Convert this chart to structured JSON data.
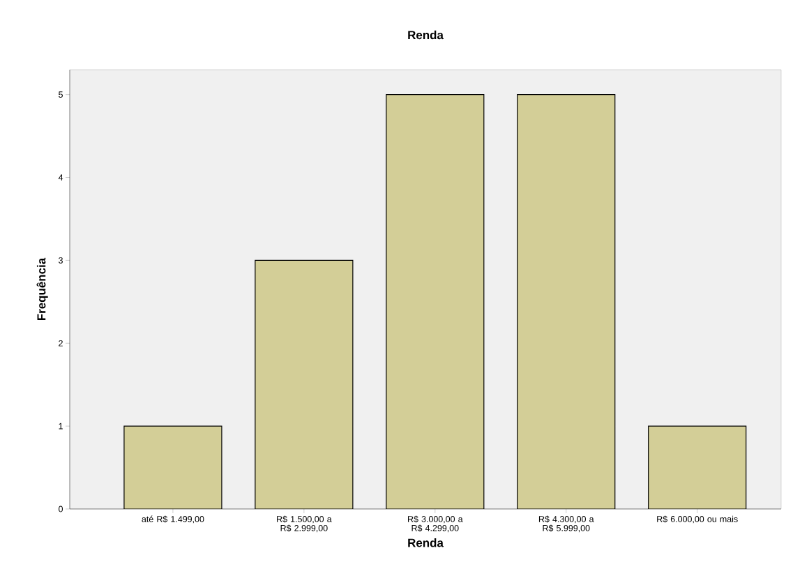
{
  "chart_data": {
    "type": "bar",
    "title": "Renda",
    "xlabel": "Renda",
    "ylabel": "Frequência",
    "categories": [
      "até R$ 1.499,00",
      "R$ 1.500,00 a R$ 2.999,00",
      "R$ 3.000,00 a R$ 4.299,00",
      "R$ 4.300,00 a R$ 5.999,00",
      "R$ 6.000,00 ou mais"
    ],
    "values": [
      1,
      3,
      5,
      5,
      1
    ],
    "color": "#d3ce97",
    "ylim": [
      0,
      5.3
    ],
    "yticks": [
      0,
      1,
      2,
      3,
      4,
      5
    ],
    "grid": false
  }
}
